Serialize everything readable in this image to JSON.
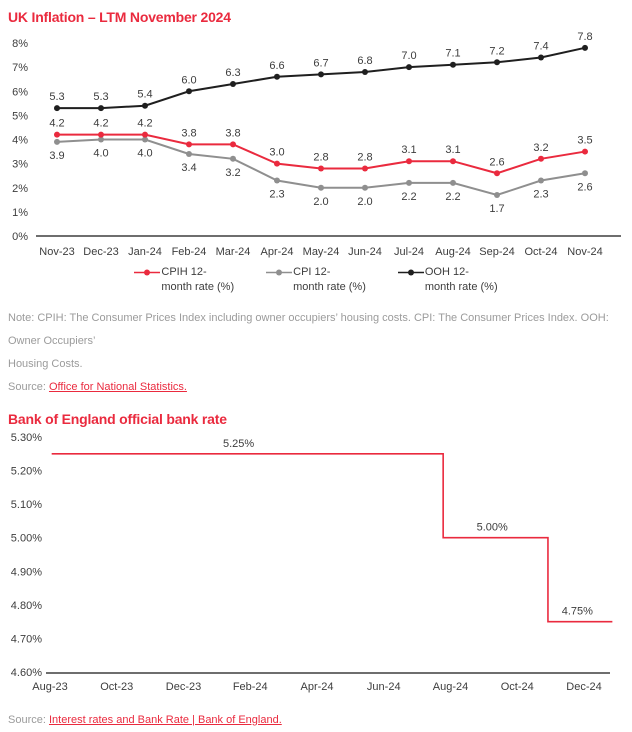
{
  "inflation_section": {
    "title": "UK Inflation – LTM November 2024",
    "note_lines": [
      "Note: CPIH: The Consumer Prices Index including owner occupiers’ housing costs. CPI: The Consumer Prices Index. OOH: Owner Occupiers’",
      "Housing Costs."
    ],
    "source_label": "Source:",
    "source_link": "Office for National Statistics."
  },
  "bank_rate_section": {
    "title": "Bank of England official bank rate",
    "source_label": "Source:",
    "source_link": "Interest rates and Bank Rate | Bank of England."
  },
  "colors": {
    "brand_red": "#EA2A3E",
    "series_gray": "#8F8F8F",
    "series_black": "#1F1F1F",
    "axis_gray": "#6E6E6E",
    "label_dark": "#3D3D3D",
    "note_gray": "#9B9B9B"
  },
  "chart_data": [
    {
      "type": "line",
      "title": "UK Inflation – LTM November 2024",
      "categories": [
        "Nov-23",
        "Dec-23",
        "Jan-24",
        "Feb-24",
        "Mar-24",
        "Apr-24",
        "May-24",
        "Jun-24",
        "Jul-24",
        "Aug-24",
        "Sep-24",
        "Oct-24",
        "Nov-24"
      ],
      "series": [
        {
          "key": "cpih",
          "name": "CPIH 12-month rate (%)",
          "legend_lines": [
            "CPIH 12-",
            "month rate (%)"
          ],
          "color": "#EA2A3E",
          "data_label_position": "above",
          "values": [
            4.2,
            4.2,
            4.2,
            3.8,
            3.8,
            3.0,
            2.8,
            2.8,
            3.1,
            3.1,
            2.6,
            3.2,
            3.5
          ]
        },
        {
          "key": "cpi",
          "name": "CPI 12-month rate (%)",
          "legend_lines": [
            "CPI 12-",
            "month rate (%)"
          ],
          "color": "#8F8F8F",
          "data_label_position": "below",
          "values": [
            3.9,
            4.0,
            4.0,
            3.4,
            3.2,
            2.3,
            2.0,
            2.0,
            2.2,
            2.2,
            1.7,
            2.3,
            2.6
          ]
        },
        {
          "key": "ooh",
          "name": "OOH 12-month rate (%)",
          "legend_lines": [
            "OOH 12-",
            "month rate (%)"
          ],
          "color": "#1F1F1F",
          "data_label_position": "above",
          "values": [
            5.3,
            5.3,
            5.4,
            6.0,
            6.3,
            6.6,
            6.7,
            6.8,
            7.0,
            7.1,
            7.2,
            7.4,
            7.8
          ]
        }
      ],
      "xlabel": "",
      "ylabel": "",
      "ylim": [
        0,
        8
      ],
      "yticks": [
        "0%",
        "1%",
        "2%",
        "3%",
        "4%",
        "5%",
        "6%",
        "7%",
        "8%"
      ],
      "grid": false,
      "data_labels": true,
      "legend_position": "bottom"
    },
    {
      "type": "line",
      "subtype": "step",
      "title": "Bank of England official bank rate",
      "x_ticks": [
        "Aug-23",
        "Oct-23",
        "Dec-23",
        "Feb-24",
        "Apr-24",
        "Jun-24",
        "Aug-24",
        "Oct-24",
        "Dec-24"
      ],
      "months_per_tick": 2,
      "segments": [
        {
          "label": "5.25%",
          "value": 5.25,
          "from_month": 0.05,
          "to_month": 11.78,
          "label_at_month": 5.65
        },
        {
          "label": "5.00%",
          "value": 5.0,
          "from_month": 11.78,
          "to_month": 14.92,
          "label_at_month": 13.25
        },
        {
          "label": "4.75%",
          "value": 4.75,
          "from_month": 14.92,
          "to_month": 16.85,
          "label_at_month": 15.8
        }
      ],
      "ylim": [
        4.6,
        5.3
      ],
      "ytick_step": 0.1,
      "yticks": [
        "5.30%",
        "5.20%",
        "5.10%",
        "5.00%",
        "4.90%",
        "4.80%",
        "4.70%",
        "4.60%"
      ],
      "grid": false,
      "legend_position": "none",
      "color": "#EA2A3E"
    }
  ]
}
